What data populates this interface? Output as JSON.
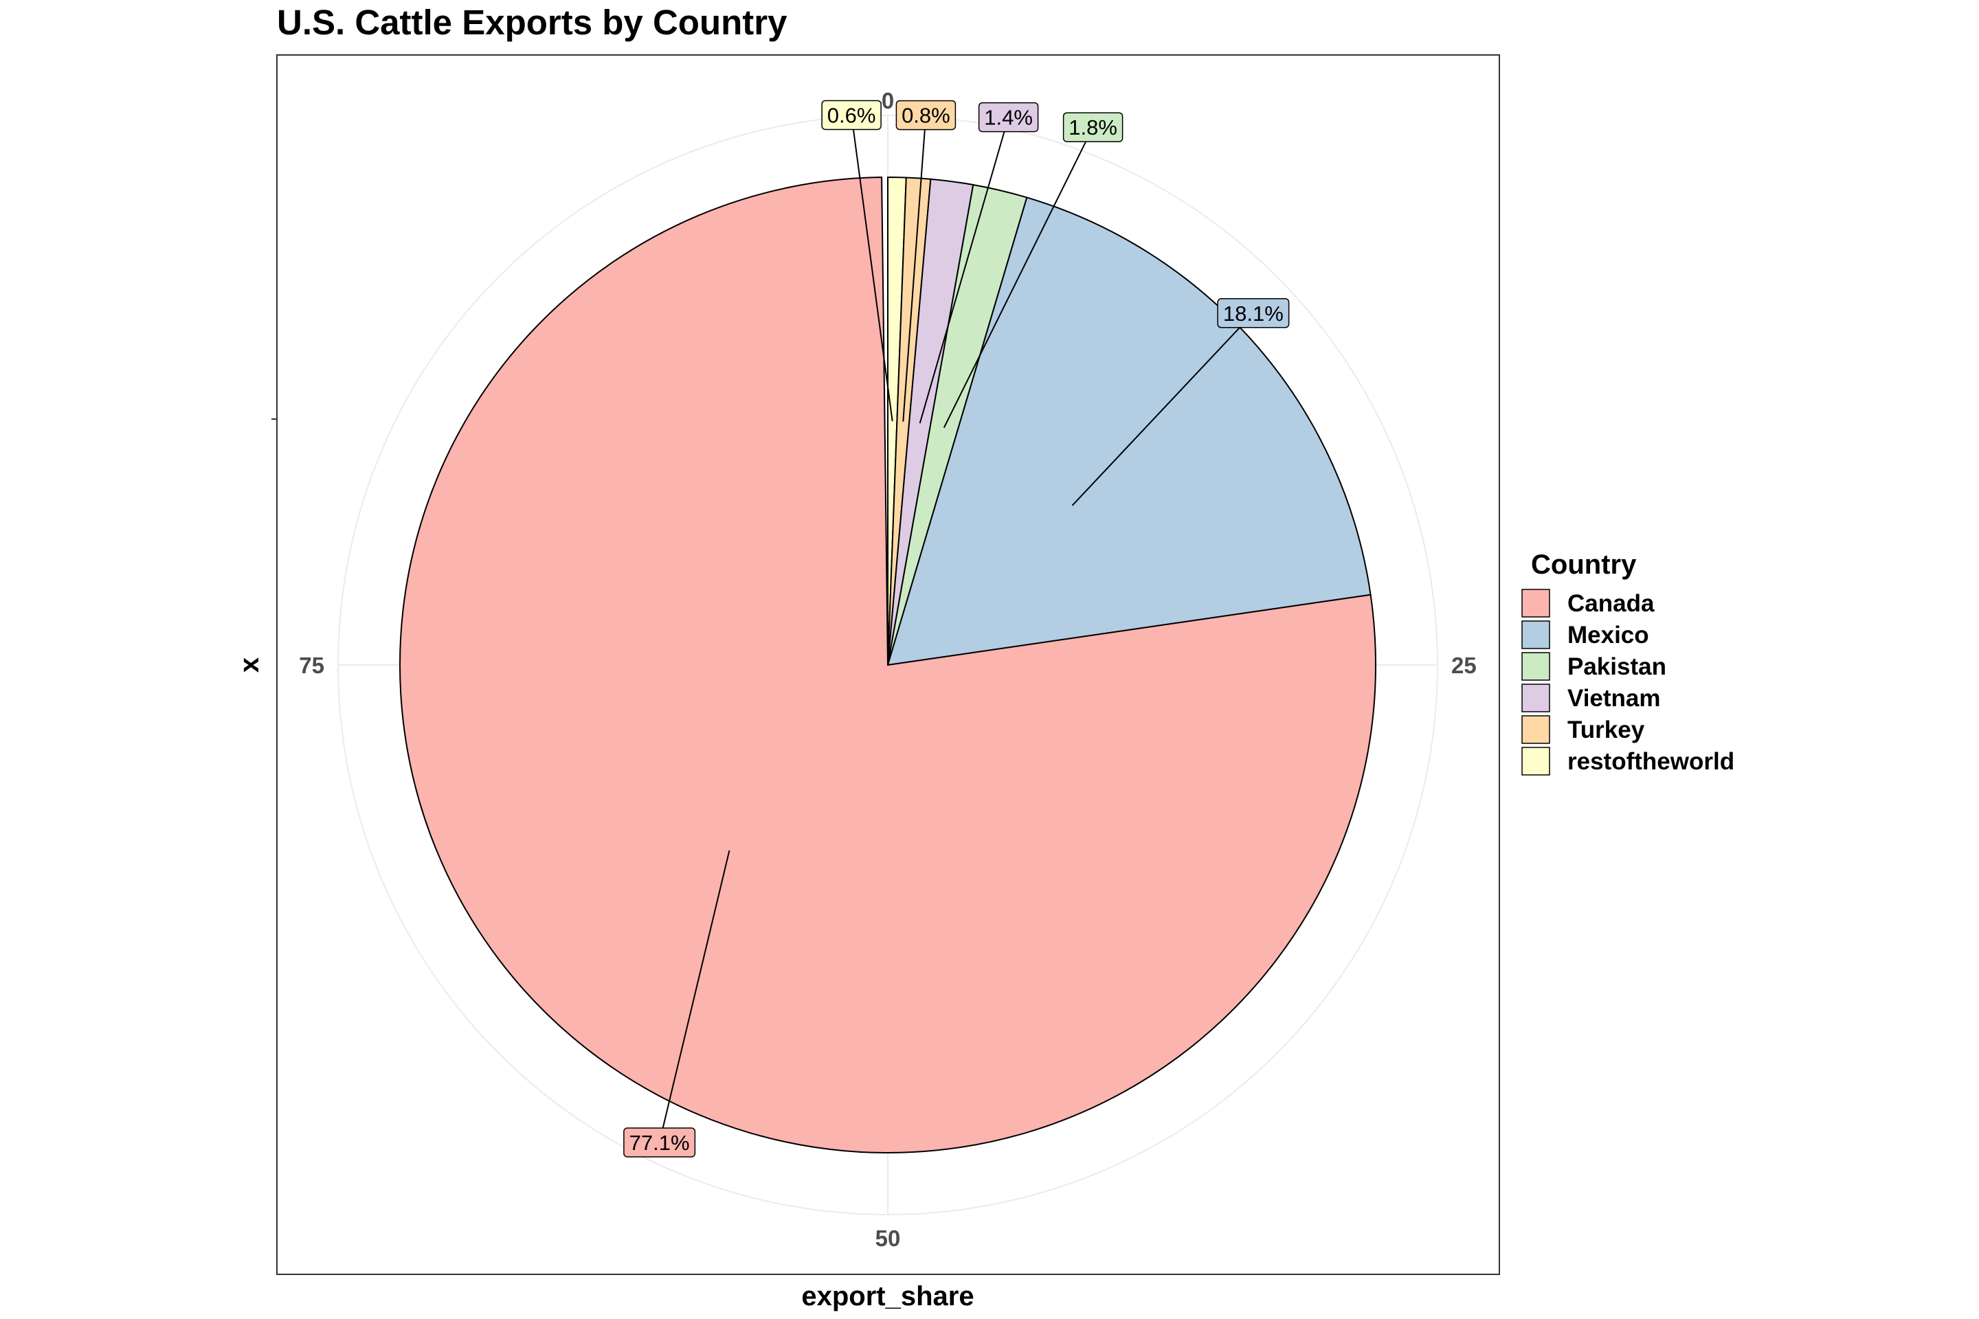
{
  "chart_data": {
    "type": "pie",
    "title": "U.S. Cattle Exports by Country",
    "xlabel": "export_share",
    "ylabel": "x",
    "theta_ticks": [
      {
        "value": 0,
        "label": "0"
      },
      {
        "value": 25,
        "label": "25"
      },
      {
        "value": 50,
        "label": "50"
      },
      {
        "value": 75,
        "label": "75"
      }
    ],
    "theta_range": [
      0,
      100
    ],
    "grid": true,
    "legend": {
      "title": "Country",
      "position": "right"
    },
    "slices": [
      {
        "name": "Canada",
        "value": 77.1,
        "label": "77.1%",
        "color": "#FBB4AE"
      },
      {
        "name": "Mexico",
        "value": 18.1,
        "label": "18.1%",
        "color": "#B3CDE3"
      },
      {
        "name": "Pakistan",
        "value": 1.8,
        "label": "1.8%",
        "color": "#CCEBC5"
      },
      {
        "name": "Vietnam",
        "value": 1.4,
        "label": "1.4%",
        "color": "#DECBE4"
      },
      {
        "name": "Turkey",
        "value": 0.8,
        "label": "0.8%",
        "color": "#FED9A6"
      },
      {
        "name": "restoftheworld",
        "value": 0.6,
        "label": "0.6%",
        "color": "#FFFFCC"
      }
    ],
    "stack_order_clockwise_from_top": [
      "restoftheworld",
      "Turkey",
      "Vietnam",
      "Pakistan",
      "Mexico",
      "Canada"
    ]
  }
}
